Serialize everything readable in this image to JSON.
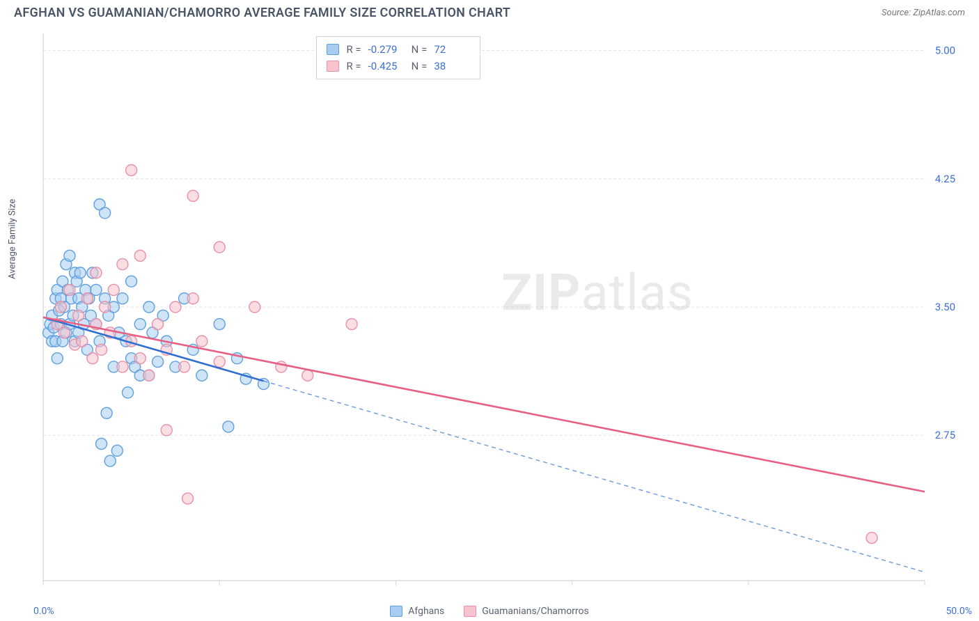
{
  "title": "AFGHAN VS GUAMANIAN/CHAMORRO AVERAGE FAMILY SIZE CORRELATION CHART",
  "source": "Source: ZipAtlas.com",
  "watermark_zip": "ZIP",
  "watermark_atlas": "atlas",
  "y_axis_label": "Average Family Size",
  "x_min_label": "0.0%",
  "x_max_label": "50.0%",
  "chart": {
    "type": "scatter",
    "plot_bg": "#ffffff",
    "grid_color": "#e2e4e9",
    "axis_color": "#cfd4dc",
    "xlim": [
      0,
      50
    ],
    "ylim": [
      1.9,
      5.1
    ],
    "y_ticks": [
      2.75,
      3.5,
      4.25,
      5.0
    ],
    "y_tick_labels": [
      "2.75",
      "3.50",
      "4.25",
      "5.00"
    ],
    "x_ticks": [
      0,
      10,
      20,
      30,
      40,
      50
    ],
    "marker_radius": 8,
    "marker_stroke_width": 1.4,
    "series": [
      {
        "name": "Afghans",
        "color_fill": "#a8cdf0",
        "color_stroke": "#5f9fe0",
        "line_color": "#2f6fd0",
        "r_value": "-0.279",
        "n_value": "72",
        "trend": {
          "x1": 0,
          "y1": 3.44,
          "x2": 50,
          "y2": 1.95,
          "solid_until_x": 12.5
        },
        "points": [
          [
            0.3,
            3.35
          ],
          [
            0.4,
            3.4
          ],
          [
            0.5,
            3.3
          ],
          [
            0.5,
            3.45
          ],
          [
            0.6,
            3.38
          ],
          [
            0.7,
            3.55
          ],
          [
            0.7,
            3.3
          ],
          [
            0.8,
            3.6
          ],
          [
            0.8,
            3.2
          ],
          [
            0.9,
            3.48
          ],
          [
            1.0,
            3.55
          ],
          [
            1.0,
            3.4
          ],
          [
            1.1,
            3.3
          ],
          [
            1.1,
            3.65
          ],
          [
            1.2,
            3.5
          ],
          [
            1.3,
            3.75
          ],
          [
            1.3,
            3.35
          ],
          [
            1.4,
            3.6
          ],
          [
            1.5,
            3.4
          ],
          [
            1.5,
            3.8
          ],
          [
            1.6,
            3.55
          ],
          [
            1.7,
            3.45
          ],
          [
            1.8,
            3.7
          ],
          [
            1.8,
            3.3
          ],
          [
            1.9,
            3.65
          ],
          [
            2.0,
            3.55
          ],
          [
            2.0,
            3.35
          ],
          [
            2.1,
            3.7
          ],
          [
            2.2,
            3.5
          ],
          [
            2.3,
            3.4
          ],
          [
            2.4,
            3.6
          ],
          [
            2.5,
            3.25
          ],
          [
            2.6,
            3.55
          ],
          [
            2.7,
            3.45
          ],
          [
            2.8,
            3.7
          ],
          [
            3.0,
            3.4
          ],
          [
            3.0,
            3.6
          ],
          [
            3.2,
            4.1
          ],
          [
            3.2,
            3.3
          ],
          [
            3.3,
            2.7
          ],
          [
            3.5,
            4.05
          ],
          [
            3.5,
            3.55
          ],
          [
            3.6,
            2.88
          ],
          [
            3.7,
            3.45
          ],
          [
            3.8,
            2.6
          ],
          [
            4.0,
            3.5
          ],
          [
            4.0,
            3.15
          ],
          [
            4.2,
            2.66
          ],
          [
            4.3,
            3.35
          ],
          [
            4.5,
            3.55
          ],
          [
            4.7,
            3.3
          ],
          [
            4.8,
            3.0
          ],
          [
            5.0,
            3.65
          ],
          [
            5.0,
            3.2
          ],
          [
            5.2,
            3.15
          ],
          [
            5.5,
            3.4
          ],
          [
            5.5,
            3.1
          ],
          [
            6.0,
            3.5
          ],
          [
            6.0,
            3.1
          ],
          [
            6.2,
            3.35
          ],
          [
            6.5,
            3.18
          ],
          [
            6.8,
            3.45
          ],
          [
            7.0,
            3.3
          ],
          [
            7.5,
            3.15
          ],
          [
            8.0,
            3.55
          ],
          [
            8.5,
            3.25
          ],
          [
            9.0,
            3.1
          ],
          [
            10.0,
            3.4
          ],
          [
            10.5,
            2.8
          ],
          [
            11.0,
            3.2
          ],
          [
            11.5,
            3.08
          ],
          [
            12.5,
            3.05
          ]
        ]
      },
      {
        "name": "Guamanians/Chamorros",
        "color_fill": "#f6c3ce",
        "color_stroke": "#ea8fa5",
        "line_color": "#e85f84",
        "r_value": "-0.425",
        "n_value": "38",
        "trend": {
          "x1": 0,
          "y1": 3.44,
          "x2": 50,
          "y2": 2.42,
          "solid_until_x": 50
        },
        "points": [
          [
            0.8,
            3.4
          ],
          [
            1.0,
            3.5
          ],
          [
            1.2,
            3.35
          ],
          [
            1.5,
            3.6
          ],
          [
            1.8,
            3.28
          ],
          [
            2.0,
            3.45
          ],
          [
            2.2,
            3.3
          ],
          [
            2.5,
            3.55
          ],
          [
            2.8,
            3.2
          ],
          [
            3.0,
            3.4
          ],
          [
            3.0,
            3.7
          ],
          [
            3.3,
            3.25
          ],
          [
            3.5,
            3.5
          ],
          [
            3.8,
            3.35
          ],
          [
            4.0,
            3.6
          ],
          [
            4.5,
            3.15
          ],
          [
            4.5,
            3.75
          ],
          [
            5.0,
            3.3
          ],
          [
            5.0,
            4.3
          ],
          [
            5.5,
            3.2
          ],
          [
            5.5,
            3.8
          ],
          [
            6.0,
            3.1
          ],
          [
            6.5,
            3.4
          ],
          [
            7.0,
            3.25
          ],
          [
            7.0,
            2.78
          ],
          [
            7.5,
            3.5
          ],
          [
            8.0,
            3.15
          ],
          [
            8.2,
            2.38
          ],
          [
            8.5,
            3.55
          ],
          [
            8.5,
            4.15
          ],
          [
            9.0,
            3.3
          ],
          [
            10.0,
            3.85
          ],
          [
            10.0,
            3.18
          ],
          [
            12.0,
            3.5
          ],
          [
            13.5,
            3.15
          ],
          [
            15.0,
            3.1
          ],
          [
            17.5,
            3.4
          ],
          [
            47.0,
            2.15
          ]
        ]
      }
    ]
  },
  "top_legend": {
    "r_label": "R =",
    "n_label": "N ="
  },
  "bottom_legend": {
    "label1": "Afghans",
    "label2": "Guamanians/Chamorros"
  }
}
